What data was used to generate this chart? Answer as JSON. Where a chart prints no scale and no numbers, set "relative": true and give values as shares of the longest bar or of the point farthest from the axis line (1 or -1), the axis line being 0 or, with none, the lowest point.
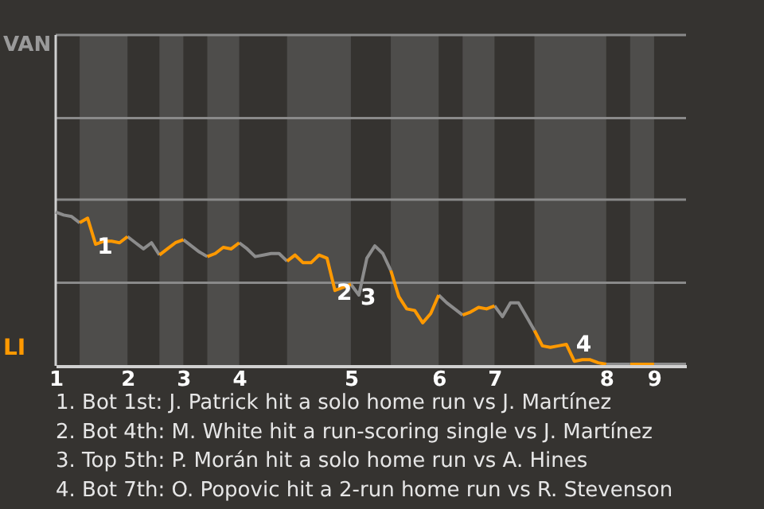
{
  "chart_data": {
    "type": "line",
    "relative": true,
    "categories": [
      "1",
      null,
      null,
      null,
      null,
      null,
      null,
      null,
      null,
      "2",
      null,
      null,
      null,
      null,
      null,
      null,
      "3",
      null,
      null,
      null,
      null,
      null,
      null,
      "4",
      null,
      null,
      null,
      null,
      null,
      null,
      null,
      null,
      null,
      null,
      null,
      null,
      null,
      "5",
      null,
      null,
      null,
      null,
      null,
      null,
      null,
      null,
      null,
      null,
      "6",
      null,
      null,
      null,
      null,
      null,
      null,
      "7",
      null,
      null,
      null,
      null,
      null,
      null,
      null,
      null,
      null,
      null,
      null,
      null,
      null,
      "8",
      null,
      null,
      null,
      null,
      null,
      "9",
      null,
      null,
      null,
      null
    ],
    "series": [
      {
        "color": "#8c8c8c",
        "values": [
          1,
          0.98,
          0.97,
          0.93,
          null,
          null,
          null,
          null,
          null,
          0.84,
          0.8,
          0.76,
          0.8,
          0.72,
          null,
          null,
          0.82,
          0.78,
          0.74,
          0.71,
          null,
          null,
          null,
          0.8,
          0.76,
          0.71,
          0.72,
          0.73,
          0.73,
          0.68,
          null,
          null,
          null,
          null,
          null,
          null,
          null,
          0.53,
          0.46,
          0.7,
          0.78,
          0.73,
          0.62,
          null,
          null,
          null,
          null,
          null,
          0.46,
          0.41,
          0.37,
          0.33,
          null,
          null,
          null,
          0.39,
          0.32,
          0.41,
          0.41,
          0.32,
          0.23,
          null,
          null,
          null,
          null,
          null,
          null,
          null,
          null,
          0.01,
          0.01,
          0.01,
          0.01,
          null,
          null,
          0.01,
          0.01,
          0.01,
          0.01,
          0.01
        ]
      },
      {
        "name": "LI",
        "color": "#ff9900",
        "values": [
          null,
          null,
          null,
          0.93,
          0.96,
          0.79,
          0.81,
          0.81,
          0.8,
          0.84,
          null,
          null,
          null,
          0.72,
          0.76,
          0.8,
          0.82,
          null,
          null,
          0.71,
          0.73,
          0.77,
          0.76,
          0.8,
          null,
          null,
          null,
          null,
          null,
          0.68,
          0.72,
          0.67,
          0.67,
          0.72,
          0.7,
          0.49,
          0.51,
          0.53,
          null,
          null,
          null,
          null,
          0.62,
          0.45,
          0.37,
          0.36,
          0.28,
          0.34,
          0.46,
          null,
          null,
          0.33,
          0.35,
          0.38,
          0.37,
          0.39,
          null,
          null,
          null,
          null,
          0.23,
          0.13,
          0.12,
          0.13,
          0.14,
          0.03,
          0.04,
          0.04,
          0.02,
          0.01,
          null,
          null,
          0.01,
          0.01,
          0.01,
          0.01,
          null,
          null,
          null,
          null
        ]
      }
    ],
    "ref_lines": [
      {
        "axis": "y",
        "value": 0.54,
        "color": "#8a8a8a"
      },
      {
        "axis": "y",
        "value": 1.08,
        "color": "#8a8a8a"
      },
      {
        "axis": "y",
        "value": 1.61,
        "color": "#8a8a8a"
      },
      {
        "axis": "y",
        "value": 2.15,
        "color": "#8a8a8a"
      }
    ],
    "annotations": [
      "VAN",
      {
        "text": "1",
        "y": 0.79
      },
      {
        "text": "2",
        "y": 0.49
      },
      {
        "text": "3",
        "y": 0.46
      },
      {
        "text": "4",
        "y": 0.03
      },
      "1. Bot 1st: J. Patrick hit a solo home run vs J. Martínez",
      "2. Bot 4th: M. White hit a run-scoring single vs J. Martínez",
      "3. Top 5th: P. Morán hit a solo home run vs A. Hines",
      "4. Bot 7th: O. Popovic hit a 2-run home run vs R. Stevenson"
    ]
  }
}
